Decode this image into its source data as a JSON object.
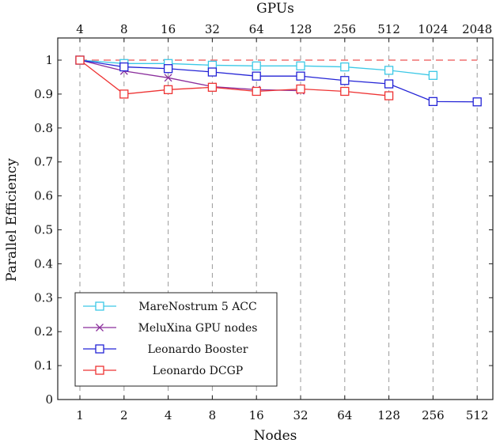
{
  "chart_data": {
    "type": "line",
    "title": "",
    "xlabel": "Nodes",
    "x2label": "GPUs",
    "ylabel": "Parallel Efficiency",
    "x_categories": [
      "1",
      "2",
      "4",
      "8",
      "16",
      "32",
      "64",
      "128",
      "256",
      "512"
    ],
    "x2_categories": [
      "4",
      "8",
      "16",
      "32",
      "64",
      "128",
      "256",
      "512",
      "1024",
      "2048"
    ],
    "yticks": [
      "0",
      "0.1",
      "0.2",
      "0.3",
      "0.4",
      "0.5",
      "0.6",
      "0.7",
      "0.8",
      "0.9",
      "1"
    ],
    "ylim": [
      0,
      1.05
    ],
    "grid": "vertical dashed",
    "legend_position": "bottom-left",
    "ideal_line": {
      "y": 1,
      "color": "#f07070",
      "style": "dashed"
    },
    "series": [
      {
        "name": "MareNostrum 5 ACC",
        "color": "#3cc8e6",
        "marker": "square",
        "values": [
          1.0,
          0.99,
          0.99,
          0.985,
          0.983,
          0.983,
          0.98,
          0.97,
          0.955,
          null
        ]
      },
      {
        "name": "MeluXina GPU nodes",
        "color": "#8b2f9c",
        "marker": "x",
        "values": [
          1.0,
          0.968,
          0.948,
          0.922,
          0.913,
          0.91,
          null,
          null,
          null,
          null
        ]
      },
      {
        "name": "Leonardo Booster",
        "color": "#2323d6",
        "marker": "square",
        "values": [
          1.0,
          0.98,
          0.975,
          0.965,
          0.953,
          0.953,
          0.94,
          0.93,
          0.878,
          0.877
        ]
      },
      {
        "name": "Leonardo DCGP",
        "color": "#ee3333",
        "marker": "square",
        "values": [
          1.0,
          0.9,
          0.913,
          0.92,
          0.908,
          0.915,
          0.908,
          0.895,
          null,
          null
        ]
      }
    ]
  }
}
